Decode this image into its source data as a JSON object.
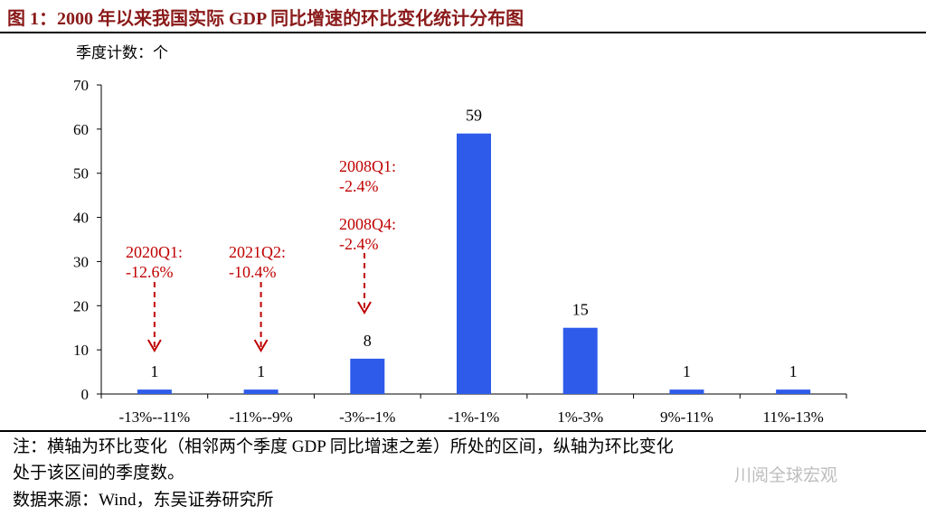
{
  "title": "图 1：2000 年以来我国实际 GDP 同比增速的环比变化统计分布图",
  "chart_data": {
    "type": "bar",
    "ylabel": "季度计数：个",
    "categories": [
      "-13%--11%",
      "-11%--9%",
      "-3%--1%",
      "-1%-1%",
      "1%-3%",
      "9%-11%",
      "11%-13%"
    ],
    "values": [
      1,
      1,
      8,
      59,
      15,
      1,
      1
    ],
    "ylim": [
      0,
      70
    ],
    "yticks": [
      0,
      10,
      20,
      30,
      40,
      50,
      60,
      70
    ],
    "bar_color": "#2E5BEA",
    "annotation_color": "#C00000",
    "annotations": [
      {
        "category_index": 0,
        "lines": [
          "2020Q1:",
          "-12.6%"
        ]
      },
      {
        "category_index": 1,
        "lines": [
          "2021Q2:",
          "-10.4%"
        ]
      },
      {
        "category_index": 2,
        "lines": [
          "2008Q1:",
          "-2.4%"
        ]
      },
      {
        "category_index": 2,
        "lines": [
          "2008Q4:",
          "-2.4%"
        ]
      }
    ],
    "grid": false,
    "legend": "none"
  },
  "notes": {
    "line1": "注：横轴为环比变化（相邻两个季度 GDP 同比增速之差）所处的区间，纵轴为环比变化",
    "line2": "处于该区间的季度数。",
    "source": "数据来源：Wind，东吴证券研究所"
  },
  "watermark": "川阅全球宏观"
}
